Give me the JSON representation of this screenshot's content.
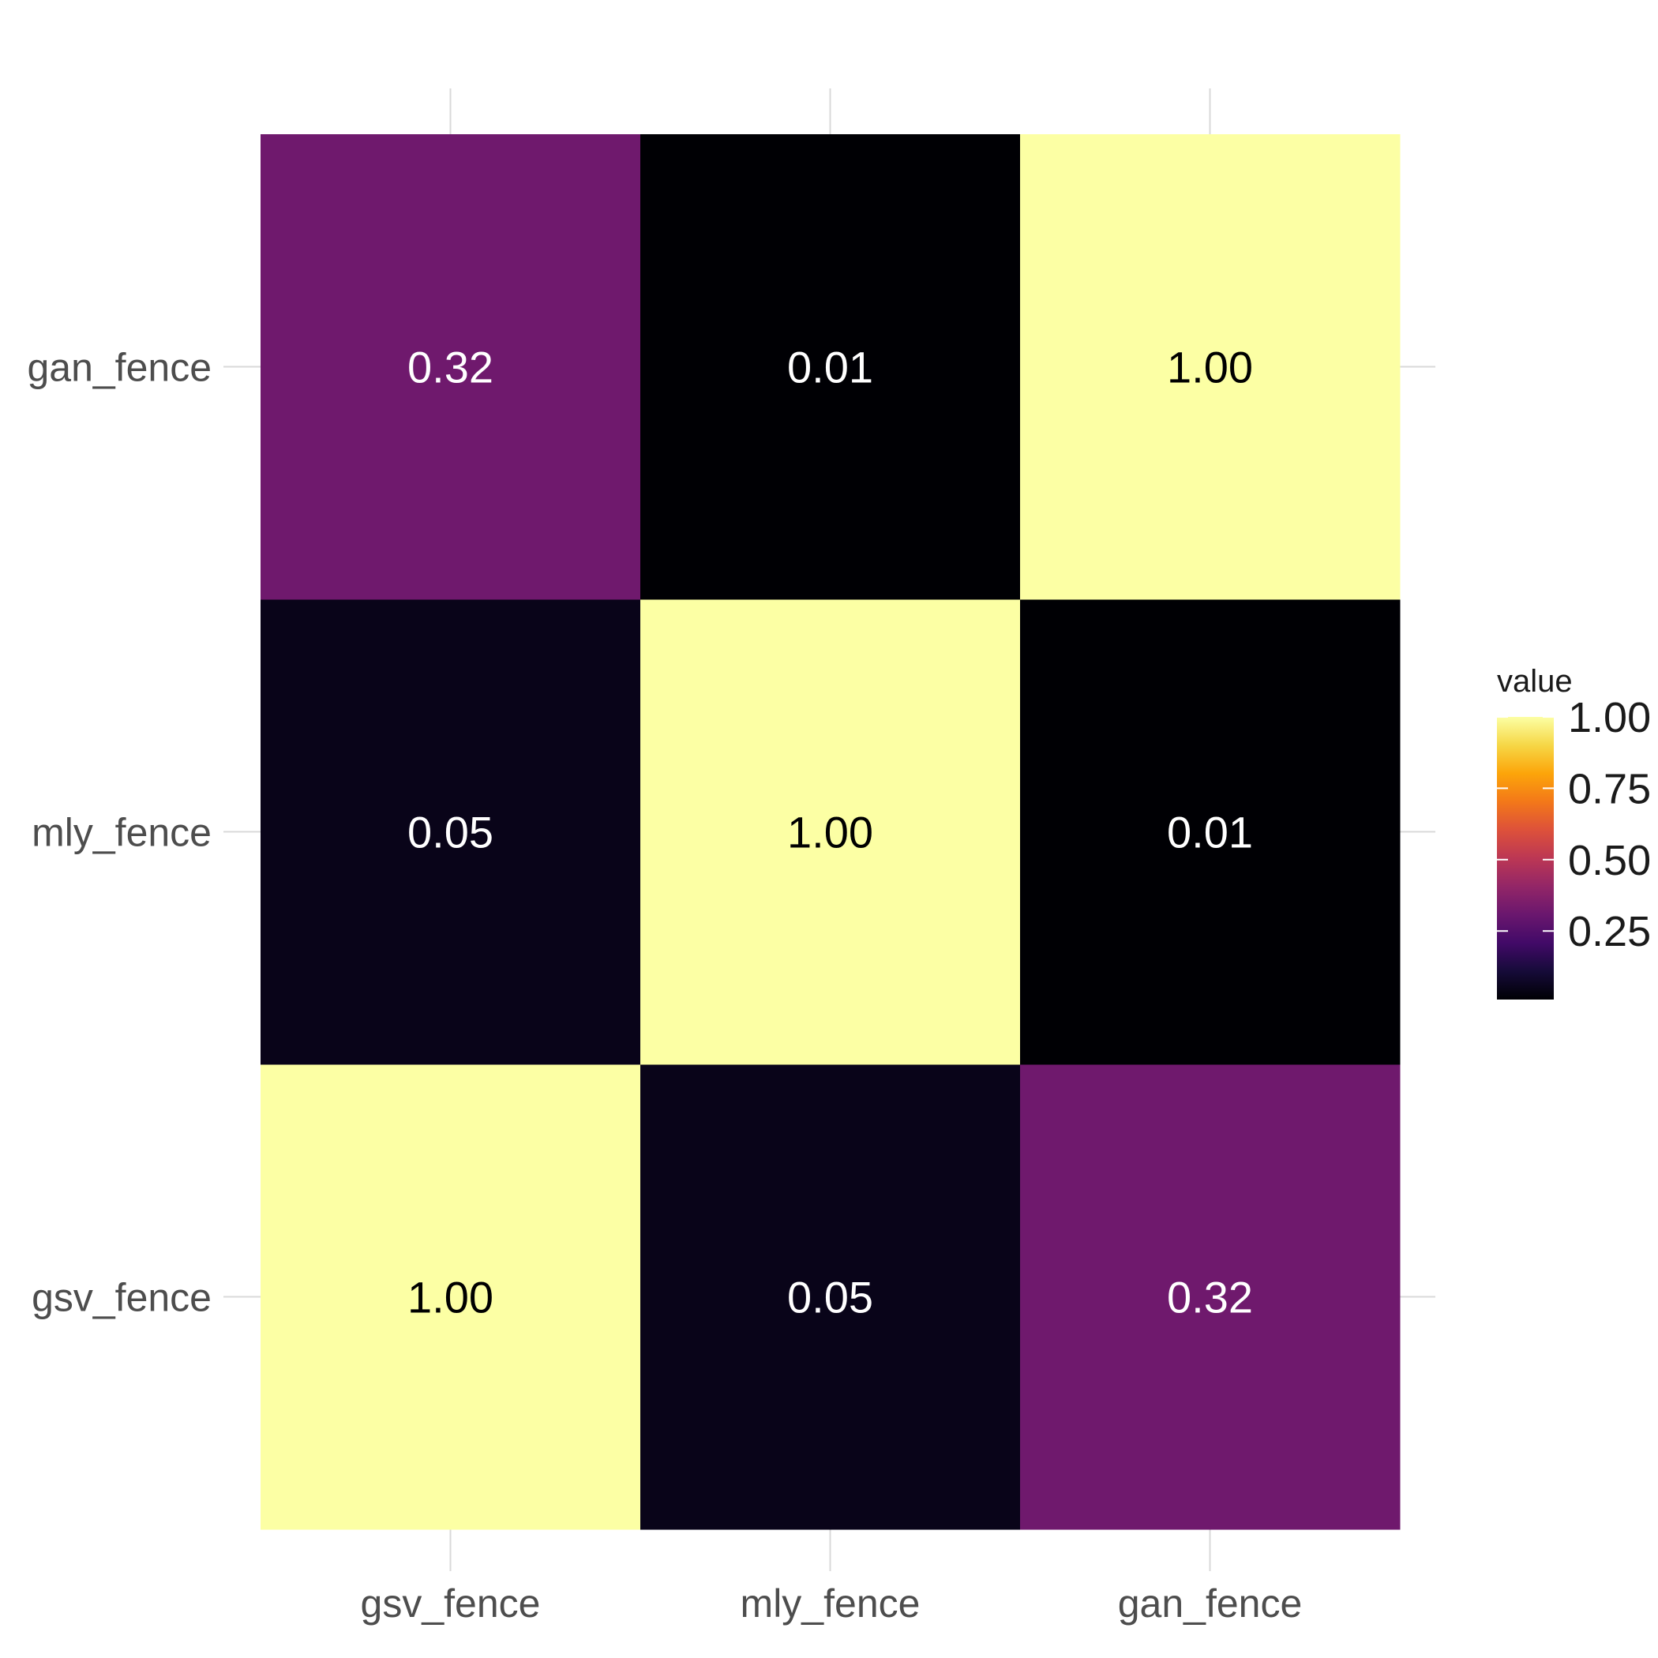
{
  "chart_data": {
    "type": "heatmap",
    "x_categories": [
      "gsv_fence",
      "mly_fence",
      "gan_fence"
    ],
    "y_categories": [
      "gsv_fence",
      "mly_fence",
      "gan_fence"
    ],
    "values": [
      [
        1.0,
        0.05,
        0.32
      ],
      [
        0.05,
        1.0,
        0.01
      ],
      [
        0.32,
        0.01,
        1.0
      ]
    ],
    "value_labels": [
      [
        "1.00",
        "0.05",
        "0.32"
      ],
      [
        "0.05",
        "1.00",
        "0.01"
      ],
      [
        "0.32",
        "0.01",
        "1.00"
      ]
    ],
    "color_scale": "inferno",
    "color_range": [
      0.01,
      1.0
    ],
    "legend": {
      "title": "value",
      "position": "right",
      "ticks": [
        0.25,
        0.5,
        0.75,
        1.0
      ],
      "tick_labels": [
        "0.25",
        "0.50",
        "0.75",
        "1.00"
      ]
    },
    "grid": true
  }
}
